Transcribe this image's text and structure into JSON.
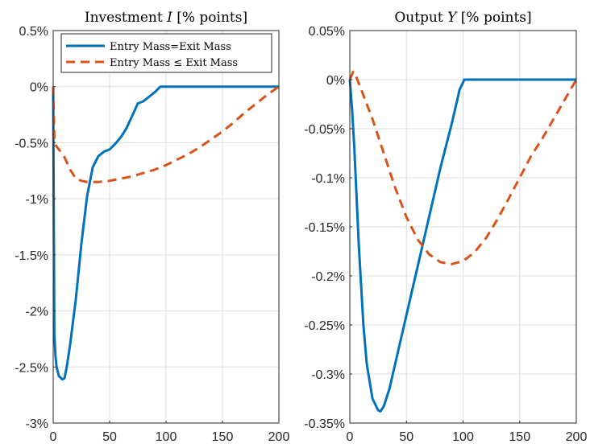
{
  "chart_data": [
    {
      "type": "line",
      "title": "Investment $I$ [% points]",
      "title_parts": [
        "Investment ",
        "I",
        " [% points]"
      ],
      "xlim": [
        0,
        200
      ],
      "ylim": [
        -3,
        0.5
      ],
      "xticks": [
        0,
        50,
        100,
        150,
        200
      ],
      "xtick_labels": [
        "0",
        "50",
        "100",
        "150",
        "200"
      ],
      "yticks": [
        0.5,
        0,
        -0.5,
        -1,
        -1.5,
        -2,
        -2.5,
        -3
      ],
      "ytick_labels": [
        "0.5%",
        "0%",
        "-0.5%",
        "-1%",
        "-1.5%",
        "-2%",
        "-2.5%",
        "-3%"
      ],
      "grid": true,
      "legend": {
        "location": "top-right",
        "entries": [
          "Entry Mass=Exit Mass",
          "Entry Mass ≤ Exit Mass"
        ]
      },
      "series": [
        {
          "name": "Entry Mass=Exit Mass",
          "color": "#0072BD",
          "dash": "solid",
          "x": [
            0,
            1,
            2,
            3,
            5,
            8,
            10,
            12,
            15,
            20,
            25,
            30,
            35,
            40,
            45,
            50,
            55,
            60,
            65,
            70,
            75,
            80,
            85,
            90,
            95,
            100,
            110,
            120,
            150,
            200
          ],
          "y": [
            0,
            -2.2,
            -2.4,
            -2.5,
            -2.58,
            -2.61,
            -2.6,
            -2.5,
            -2.3,
            -1.9,
            -1.4,
            -0.98,
            -0.72,
            -0.62,
            -0.58,
            -0.56,
            -0.51,
            -0.45,
            -0.37,
            -0.26,
            -0.15,
            -0.13,
            -0.09,
            -0.05,
            0.0,
            0.0,
            0.0,
            0.0,
            0.0,
            0.0
          ]
        },
        {
          "name": "Entry Mass ≤ Exit Mass",
          "color": "#D95319",
          "dash": "dashed",
          "x": [
            0,
            1,
            2,
            5,
            10,
            15,
            20,
            25,
            30,
            35,
            40,
            50,
            60,
            70,
            80,
            90,
            100,
            110,
            120,
            130,
            140,
            150,
            160,
            170,
            180,
            190,
            200
          ],
          "y": [
            0,
            -0.45,
            -0.52,
            -0.56,
            -0.63,
            -0.74,
            -0.82,
            -0.84,
            -0.85,
            -0.85,
            -0.85,
            -0.84,
            -0.82,
            -0.8,
            -0.77,
            -0.74,
            -0.7,
            -0.65,
            -0.6,
            -0.54,
            -0.47,
            -0.4,
            -0.32,
            -0.23,
            -0.15,
            -0.07,
            0.0
          ]
        }
      ]
    },
    {
      "type": "line",
      "title": "Output $Y$ [% points]",
      "title_parts": [
        "Output ",
        "Y",
        " [% points]"
      ],
      "xlim": [
        0,
        200
      ],
      "ylim": [
        -0.35,
        0.05
      ],
      "xticks": [
        0,
        50,
        100,
        150,
        200
      ],
      "xtick_labels": [
        "0",
        "50",
        "100",
        "150",
        "200"
      ],
      "yticks": [
        0.05,
        0,
        -0.05,
        -0.1,
        -0.15,
        -0.2,
        -0.25,
        -0.3,
        -0.35
      ],
      "ytick_labels": [
        "0.05%",
        "0%",
        "-0.05%",
        "-0.1%",
        "-0.15%",
        "-0.2%",
        "-0.25%",
        "-0.3%",
        "-0.35%"
      ],
      "grid": true,
      "series": [
        {
          "name": "Entry Mass=Exit Mass",
          "color": "#0072BD",
          "dash": "solid",
          "x": [
            0,
            2,
            4,
            6,
            8,
            10,
            12,
            15,
            20,
            25,
            27,
            30,
            35,
            40,
            50,
            60,
            70,
            80,
            90,
            97,
            100,
            101,
            110,
            150,
            200
          ],
          "y": [
            0,
            -0.03,
            -0.07,
            -0.12,
            -0.17,
            -0.21,
            -0.25,
            -0.29,
            -0.325,
            -0.337,
            -0.338,
            -0.333,
            -0.315,
            -0.29,
            -0.24,
            -0.19,
            -0.14,
            -0.09,
            -0.045,
            -0.01,
            -0.003,
            0.0,
            0.0,
            0.0,
            0.0
          ]
        },
        {
          "name": "Entry Mass ≤ Exit Mass",
          "color": "#D95319",
          "dash": "dashed",
          "x": [
            0,
            3,
            5,
            10,
            20,
            30,
            40,
            50,
            60,
            70,
            80,
            90,
            100,
            110,
            120,
            130,
            140,
            150,
            160,
            170,
            180,
            190,
            200
          ],
          "y": [
            0.0,
            0.008,
            0.005,
            -0.01,
            -0.04,
            -0.075,
            -0.11,
            -0.14,
            -0.163,
            -0.178,
            -0.186,
            -0.188,
            -0.185,
            -0.176,
            -0.162,
            -0.143,
            -0.122,
            -0.1,
            -0.078,
            -0.06,
            -0.04,
            -0.02,
            0.0
          ]
        }
      ]
    }
  ]
}
